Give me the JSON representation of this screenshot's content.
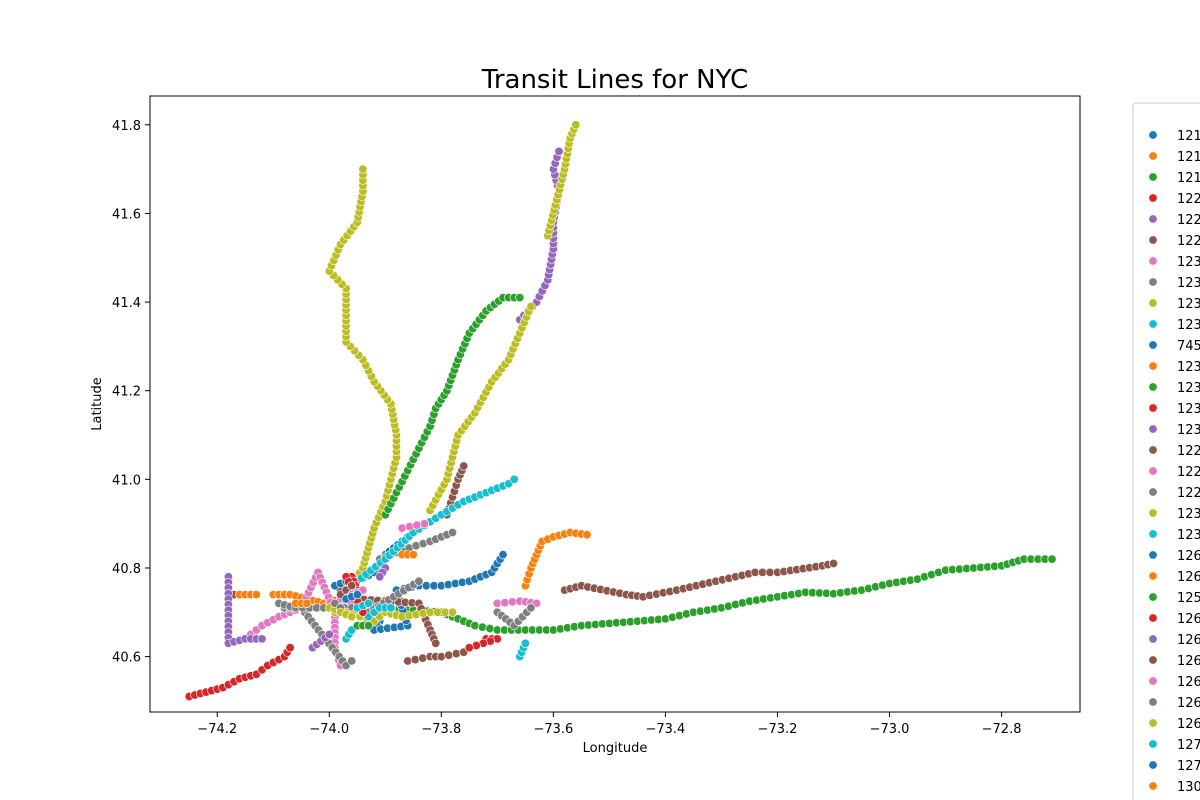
{
  "chart_data": {
    "type": "scatter",
    "title": "Transit Lines for NYC",
    "xlabel": "Longitude",
    "ylabel": "Latitude",
    "xlim": [
      -74.32,
      -72.66
    ],
    "ylim": [
      40.475,
      41.865
    ],
    "xticks": [
      -74.2,
      -74.0,
      -73.8,
      -73.6,
      -73.4,
      -73.2,
      -73.0,
      -72.8
    ],
    "xtick_labels": [
      "−74.2",
      "−74.0",
      "−73.8",
      "−73.6",
      "−73.4",
      "−73.2",
      "−73.0",
      "−72.8"
    ],
    "yticks": [
      40.6,
      40.8,
      41.0,
      41.2,
      41.4,
      41.6,
      41.8
    ],
    "ytick_labels": [
      "40.6",
      "40.8",
      "41.0",
      "41.2",
      "41.4",
      "41.6",
      "41.8"
    ],
    "grid": false,
    "legend_position": "right, outside plot (cut off)",
    "series": [
      {
        "name": "121",
        "color": "#1f77b4",
        "points": [
          [
            -73.98,
            40.76
          ],
          [
            -73.95,
            40.77
          ],
          [
            -73.92,
            40.79
          ],
          [
            -73.9,
            40.83
          ],
          [
            -73.87,
            40.86
          ],
          [
            -73.85,
            40.88
          ]
        ]
      },
      {
        "name": "121",
        "color": "#ff7f0e",
        "points": [
          [
            -74.1,
            40.74
          ],
          [
            -74.07,
            40.74
          ],
          [
            -74.04,
            40.73
          ],
          [
            -74.01,
            40.72
          ],
          [
            -73.98,
            40.73
          ]
        ]
      },
      {
        "name": "121",
        "color": "#2ca02c",
        "points": [
          [
            -73.98,
            40.75
          ],
          [
            -73.9,
            40.71
          ],
          [
            -73.8,
            40.7
          ],
          [
            -73.74,
            40.67
          ],
          [
            -73.7,
            40.66
          ],
          [
            -73.65,
            40.66
          ],
          [
            -73.6,
            40.66
          ],
          [
            -73.55,
            40.67
          ],
          [
            -73.5,
            40.675
          ],
          [
            -73.45,
            40.68
          ],
          [
            -73.4,
            40.685
          ],
          [
            -73.35,
            40.7
          ],
          [
            -73.3,
            40.71
          ],
          [
            -73.25,
            40.725
          ],
          [
            -73.2,
            40.735
          ],
          [
            -73.15,
            40.745
          ],
          [
            -73.1,
            40.742
          ],
          [
            -73.05,
            40.75
          ],
          [
            -73.0,
            40.765
          ],
          [
            -72.95,
            40.775
          ],
          [
            -72.9,
            40.795
          ],
          [
            -72.85,
            40.8
          ],
          [
            -72.8,
            40.805
          ],
          [
            -72.76,
            40.82
          ],
          [
            -72.71,
            40.82
          ]
        ]
      },
      {
        "name": "122",
        "color": "#d62728",
        "points": [
          [
            -74.25,
            40.51
          ],
          [
            -74.22,
            40.52
          ],
          [
            -74.19,
            40.53
          ],
          [
            -74.16,
            40.55
          ],
          [
            -74.13,
            40.56
          ],
          [
            -74.11,
            40.58
          ],
          [
            -74.08,
            40.6
          ],
          [
            -74.07,
            40.62
          ]
        ]
      },
      {
        "name": "122",
        "color": "#9467bd",
        "points": [
          [
            -73.66,
            41.36
          ],
          [
            -73.63,
            41.4
          ],
          [
            -73.61,
            41.45
          ],
          [
            -73.6,
            41.52
          ],
          [
            -73.6,
            41.58
          ],
          [
            -73.59,
            41.65
          ],
          [
            -73.6,
            41.7
          ],
          [
            -73.59,
            41.74
          ]
        ]
      },
      {
        "name": "122",
        "color": "#8c564b",
        "points": [
          [
            -73.86,
            40.59
          ],
          [
            -73.82,
            40.6
          ],
          [
            -73.8,
            40.6
          ],
          [
            -73.76,
            40.61
          ],
          [
            -73.79,
            40.92
          ],
          [
            -73.78,
            40.96
          ],
          [
            -73.77,
            41.0
          ],
          [
            -73.76,
            41.03
          ]
        ]
      },
      {
        "name": "123",
        "color": "#e377c2",
        "points": [
          [
            -74.14,
            40.65
          ],
          [
            -74.12,
            40.67
          ],
          [
            -74.09,
            40.69
          ],
          [
            -74.05,
            40.71
          ],
          [
            -74.02,
            40.79
          ],
          [
            -73.99,
            40.7
          ],
          [
            -73.99,
            40.62
          ],
          [
            -73.98,
            40.58
          ],
          [
            -73.7,
            40.72
          ],
          [
            -73.66,
            40.725
          ],
          [
            -73.63,
            40.72
          ]
        ]
      },
      {
        "name": "123",
        "color": "#7f7f7f",
        "points": [
          [
            -74.08,
            40.71
          ],
          [
            -74.05,
            40.71
          ],
          [
            -73.97,
            40.58
          ],
          [
            -73.96,
            40.59
          ],
          [
            -73.91,
            40.82
          ],
          [
            -73.87,
            40.84
          ],
          [
            -73.82,
            40.86
          ],
          [
            -73.78,
            40.88
          ],
          [
            -73.7,
            40.7
          ],
          [
            -73.67,
            40.67
          ],
          [
            -73.64,
            40.71
          ]
        ]
      },
      {
        "name": "123",
        "color": "#bcbd22",
        "points": [
          [
            -73.99,
            40.7
          ],
          [
            -73.94,
            40.8
          ],
          [
            -73.92,
            40.89
          ],
          [
            -73.9,
            40.95
          ],
          [
            -73.89,
            41.0
          ],
          [
            -73.88,
            41.05
          ],
          [
            -73.88,
            41.1
          ],
          [
            -73.89,
            41.17
          ],
          [
            -73.92,
            41.22
          ],
          [
            -73.94,
            41.27
          ],
          [
            -73.97,
            41.31
          ],
          [
            -73.97,
            41.37
          ],
          [
            -73.97,
            41.43
          ],
          [
            -74.0,
            41.47
          ],
          [
            -73.98,
            41.53
          ],
          [
            -73.95,
            41.58
          ],
          [
            -73.94,
            41.65
          ],
          [
            -73.94,
            41.7
          ],
          [
            -73.82,
            40.93
          ],
          [
            -73.79,
            41.0
          ],
          [
            -73.77,
            41.1
          ],
          [
            -73.74,
            41.15
          ],
          [
            -73.71,
            41.22
          ],
          [
            -73.68,
            41.27
          ],
          [
            -73.66,
            41.33
          ],
          [
            -73.64,
            41.39
          ],
          [
            -73.61,
            41.55
          ],
          [
            -73.58,
            41.7
          ],
          [
            -73.57,
            41.77
          ],
          [
            -73.56,
            41.8
          ]
        ]
      },
      {
        "name": "123",
        "color": "#17becf",
        "points": [
          [
            -73.96,
            40.76
          ],
          [
            -73.9,
            40.82
          ],
          [
            -73.85,
            40.88
          ],
          [
            -73.8,
            40.92
          ],
          [
            -73.76,
            40.95
          ],
          [
            -73.72,
            40.97
          ],
          [
            -73.68,
            40.99
          ],
          [
            -73.67,
            41.0
          ],
          [
            -73.97,
            40.64
          ],
          [
            -73.96,
            40.66
          ],
          [
            -73.66,
            40.6
          ],
          [
            -73.65,
            40.63
          ]
        ]
      },
      {
        "name": "745",
        "color": "#1f77b4",
        "points": [
          [
            -73.91,
            40.68
          ],
          [
            -73.92,
            40.66
          ],
          [
            -73.86,
            40.67
          ],
          [
            -73.88,
            40.75
          ],
          [
            -73.84,
            40.76
          ],
          [
            -73.8,
            40.76
          ],
          [
            -73.75,
            40.77
          ],
          [
            -73.71,
            40.79
          ],
          [
            -73.69,
            40.83
          ]
        ]
      },
      {
        "name": "123",
        "color": "#ff7f0e",
        "points": [
          [
            -73.65,
            40.76
          ],
          [
            -73.64,
            40.8
          ],
          [
            -73.63,
            40.83
          ],
          [
            -73.62,
            40.86
          ],
          [
            -73.6,
            40.87
          ],
          [
            -73.57,
            40.88
          ],
          [
            -73.54,
            40.875
          ],
          [
            -73.87,
            40.83
          ],
          [
            -73.85,
            40.83
          ]
        ]
      },
      {
        "name": "123",
        "color": "#2ca02c",
        "points": [
          [
            -73.9,
            40.92
          ],
          [
            -73.88,
            40.97
          ],
          [
            -73.86,
            41.02
          ],
          [
            -73.84,
            41.07
          ],
          [
            -73.82,
            41.12
          ],
          [
            -73.81,
            41.16
          ],
          [
            -73.79,
            41.2
          ],
          [
            -73.77,
            41.27
          ],
          [
            -73.75,
            41.33
          ],
          [
            -73.72,
            41.38
          ],
          [
            -73.69,
            41.41
          ],
          [
            -73.66,
            41.41
          ]
        ]
      },
      {
        "name": "123",
        "color": "#d62728",
        "points": [
          [
            -73.96,
            40.78
          ],
          [
            -73.95,
            40.75
          ],
          [
            -73.94,
            40.7
          ],
          [
            -73.72,
            40.64
          ],
          [
            -73.7,
            40.64
          ],
          [
            -73.75,
            40.62
          ]
        ]
      },
      {
        "name": "123",
        "color": "#9467bd",
        "points": [
          [
            -73.9,
            40.8
          ],
          [
            -73.91,
            40.78
          ],
          [
            -74.03,
            40.62
          ],
          [
            -74.0,
            40.65
          ]
        ]
      },
      {
        "name": "122",
        "color": "#8c564b",
        "points": [
          [
            -74.17,
            40.74
          ],
          [
            -73.98,
            40.75
          ],
          [
            -73.95,
            40.73
          ],
          [
            -73.84,
            40.72
          ],
          [
            -73.82,
            40.66
          ],
          [
            -73.81,
            40.63
          ],
          [
            -73.58,
            40.75
          ],
          [
            -73.55,
            40.76
          ],
          [
            -73.47,
            40.74
          ],
          [
            -73.44,
            40.735
          ],
          [
            -73.38,
            40.75
          ],
          [
            -73.24,
            40.79
          ],
          [
            -73.2,
            40.79
          ],
          [
            -73.12,
            40.805
          ],
          [
            -73.1,
            40.81
          ]
        ]
      },
      {
        "name": "122",
        "color": "#e377c2",
        "points": [
          [
            -73.98,
            40.73
          ],
          [
            -73.96,
            40.72
          ],
          [
            -73.87,
            40.89
          ],
          [
            -73.83,
            40.9
          ]
        ]
      },
      {
        "name": "122",
        "color": "#7f7f7f",
        "points": [
          [
            -74.09,
            40.72
          ],
          [
            -74.06,
            40.71
          ],
          [
            -73.96,
            40.71
          ],
          [
            -73.93,
            40.7
          ],
          [
            -73.84,
            40.77
          ]
        ]
      },
      {
        "name": "123",
        "color": "#bcbd22",
        "points": [
          [
            -74.0,
            40.71
          ],
          [
            -73.97,
            40.7
          ],
          [
            -73.92,
            40.68
          ],
          [
            -73.9,
            40.7
          ],
          [
            -73.87,
            40.69
          ],
          [
            -73.82,
            40.7
          ],
          [
            -73.78,
            40.7
          ]
        ]
      },
      {
        "name": "123",
        "color": "#17becf",
        "points": [
          [
            -73.93,
            40.69
          ],
          [
            -73.91,
            40.71
          ],
          [
            -73.89,
            40.71
          ]
        ]
      },
      {
        "name": "126",
        "color": "#1f77b4",
        "points": [
          [
            -73.99,
            40.76
          ],
          [
            -73.97,
            40.77
          ]
        ]
      },
      {
        "name": "126",
        "color": "#ff7f0e",
        "points": [
          [
            -74.16,
            40.74
          ],
          [
            -74.13,
            40.74
          ]
        ]
      },
      {
        "name": "125",
        "color": "#2ca02c",
        "points": [
          [
            -73.95,
            40.67
          ],
          [
            -73.93,
            40.67
          ]
        ]
      },
      {
        "name": "126",
        "color": "#d62728",
        "points": [
          [
            -73.97,
            40.78
          ],
          [
            -73.94,
            40.7
          ]
        ]
      },
      {
        "name": "126",
        "color": "#9467bd",
        "points": [
          [
            -74.18,
            40.78
          ],
          [
            -74.18,
            40.63
          ],
          [
            -74.15,
            40.64
          ],
          [
            -74.12,
            40.64
          ]
        ]
      },
      {
        "name": "126",
        "color": "#8c564b",
        "points": [
          [
            -73.98,
            40.74
          ],
          [
            -73.96,
            40.76
          ]
        ]
      },
      {
        "name": "126",
        "color": "#e377c2",
        "points": [
          [
            -73.96,
            40.74
          ],
          [
            -73.94,
            40.75
          ]
        ]
      },
      {
        "name": "126",
        "color": "#7f7f7f",
        "points": [
          [
            -73.99,
            40.72
          ],
          [
            -73.98,
            40.71
          ]
        ]
      },
      {
        "name": "126",
        "color": "#bcbd22",
        "points": [
          [
            -73.98,
            40.7
          ],
          [
            -73.96,
            40.69
          ]
        ]
      },
      {
        "name": "127",
        "color": "#17becf",
        "points": [
          [
            -73.95,
            40.71
          ],
          [
            -73.93,
            40.72
          ]
        ]
      },
      {
        "name": "127",
        "color": "#1f77b4",
        "points": [
          [
            -73.97,
            40.73
          ],
          [
            -73.95,
            40.74
          ]
        ]
      },
      {
        "name": "130",
        "color": "#ff7f0e",
        "points": [
          [
            -74.06,
            40.72
          ],
          [
            -74.04,
            40.72
          ]
        ]
      }
    ]
  }
}
